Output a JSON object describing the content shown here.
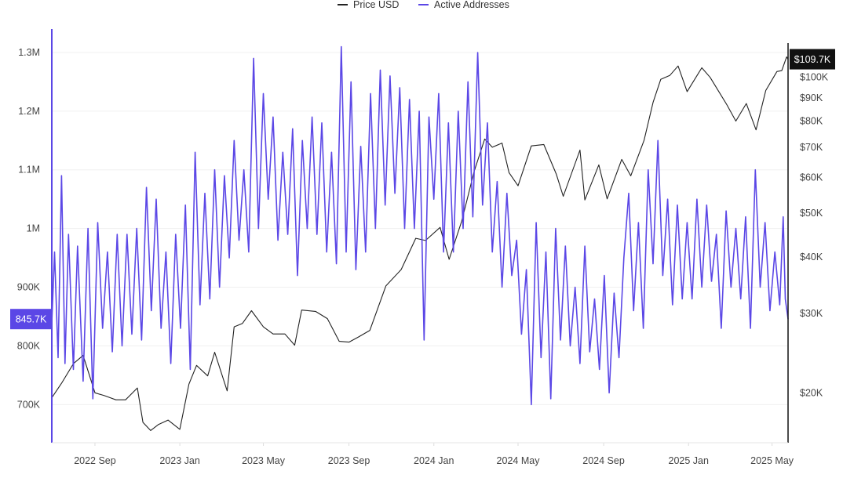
{
  "chart_data": {
    "type": "line",
    "title": "",
    "xlabel": "",
    "ylabel": "",
    "legend": {
      "placement": "top-center",
      "entries": [
        {
          "label": "Price USD",
          "color": "#222222"
        },
        {
          "label": "Active Addresses",
          "color": "#5b47e6"
        }
      ]
    },
    "x_ticks": [
      "2022 Sep",
      "2023 Jan",
      "2023 May",
      "2023 Sep",
      "2024 Jan",
      "2024 May",
      "2024 Sep",
      "2025 Jan",
      "2025 May"
    ],
    "x_range": [
      "2022-07-01",
      "2025-05-24"
    ],
    "left_axis": {
      "series": "Active Addresses",
      "ticks": [
        "700K",
        "800K",
        "900K",
        "1M",
        "1.1M",
        "1.2M",
        "1.3M"
      ],
      "tick_values": [
        700000,
        800000,
        900000,
        1000000,
        1100000,
        1200000,
        1300000
      ],
      "range": [
        635000,
        1340000
      ],
      "current_label": "845.7K",
      "current_value": 845700
    },
    "right_axis": {
      "series": "Price USD",
      "scale": "log",
      "ticks": [
        "$20K",
        "$30K",
        "$40K",
        "$50K",
        "$60K",
        "$70K",
        "$80K",
        "$90K",
        "$100K"
      ],
      "tick_values": [
        20000,
        30000,
        40000,
        50000,
        60000,
        70000,
        80000,
        90000,
        100000
      ],
      "range": [
        15500,
        128000
      ],
      "current_label": "$109.7K",
      "current_value": 109700
    },
    "grid": true,
    "series": [
      {
        "name": "Price USD",
        "color": "#222222",
        "points": [
          [
            "2022-07-01",
            19500
          ],
          [
            "2022-07-15",
            21000
          ],
          [
            "2022-08-01",
            23200
          ],
          [
            "2022-08-15",
            24200
          ],
          [
            "2022-09-01",
            20000
          ],
          [
            "2022-09-15",
            19700
          ],
          [
            "2022-10-01",
            19300
          ],
          [
            "2022-10-15",
            19300
          ],
          [
            "2022-11-01",
            20500
          ],
          [
            "2022-11-09",
            17200
          ],
          [
            "2022-11-20",
            16500
          ],
          [
            "2022-12-01",
            17000
          ],
          [
            "2022-12-15",
            17400
          ],
          [
            "2023-01-01",
            16600
          ],
          [
            "2023-01-14",
            20900
          ],
          [
            "2023-01-25",
            23000
          ],
          [
            "2023-02-10",
            21800
          ],
          [
            "2023-02-20",
            24600
          ],
          [
            "2023-03-10",
            20200
          ],
          [
            "2023-03-20",
            28000
          ],
          [
            "2023-04-01",
            28500
          ],
          [
            "2023-04-14",
            30400
          ],
          [
            "2023-05-01",
            28000
          ],
          [
            "2023-05-15",
            27000
          ],
          [
            "2023-06-01",
            27000
          ],
          [
            "2023-06-15",
            25500
          ],
          [
            "2023-06-25",
            30500
          ],
          [
            "2023-07-15",
            30300
          ],
          [
            "2023-08-01",
            29200
          ],
          [
            "2023-08-18",
            26000
          ],
          [
            "2023-09-01",
            25900
          ],
          [
            "2023-09-15",
            26600
          ],
          [
            "2023-10-01",
            27500
          ],
          [
            "2023-10-24",
            34500
          ],
          [
            "2023-11-15",
            37500
          ],
          [
            "2023-12-06",
            44000
          ],
          [
            "2023-12-20",
            43500
          ],
          [
            "2024-01-10",
            46500
          ],
          [
            "2024-01-23",
            39500
          ],
          [
            "2024-02-10",
            48000
          ],
          [
            "2024-02-28",
            62000
          ],
          [
            "2024-03-14",
            73000
          ],
          [
            "2024-03-25",
            70000
          ],
          [
            "2024-04-08",
            71500
          ],
          [
            "2024-04-18",
            61500
          ],
          [
            "2024-05-01",
            57500
          ],
          [
            "2024-05-20",
            70500
          ],
          [
            "2024-06-07",
            71000
          ],
          [
            "2024-06-25",
            61000
          ],
          [
            "2024-07-05",
            54500
          ],
          [
            "2024-07-29",
            69000
          ],
          [
            "2024-08-05",
            53500
          ],
          [
            "2024-08-25",
            64000
          ],
          [
            "2024-09-06",
            53800
          ],
          [
            "2024-09-27",
            65800
          ],
          [
            "2024-10-10",
            60500
          ],
          [
            "2024-10-29",
            72500
          ],
          [
            "2024-11-11",
            88000
          ],
          [
            "2024-11-22",
            99000
          ],
          [
            "2024-12-05",
            101000
          ],
          [
            "2024-12-17",
            106000
          ],
          [
            "2024-12-30",
            93000
          ],
          [
            "2025-01-20",
            105000
          ],
          [
            "2025-02-01",
            100000
          ],
          [
            "2025-02-25",
            87000
          ],
          [
            "2025-03-10",
            80000
          ],
          [
            "2025-03-25",
            87500
          ],
          [
            "2025-04-08",
            76500
          ],
          [
            "2025-04-22",
            93500
          ],
          [
            "2025-05-08",
            103000
          ],
          [
            "2025-05-15",
            103500
          ],
          [
            "2025-05-22",
            111000
          ],
          [
            "2025-05-24",
            109700
          ]
        ]
      },
      {
        "name": "Active Addresses",
        "color": "#5b47e6",
        "points": [
          [
            "2022-07-01",
            840000
          ],
          [
            "2022-07-05",
            960000
          ],
          [
            "2022-07-10",
            780000
          ],
          [
            "2022-07-15",
            1090000
          ],
          [
            "2022-07-20",
            770000
          ],
          [
            "2022-07-25",
            990000
          ],
          [
            "2022-08-01",
            760000
          ],
          [
            "2022-08-07",
            970000
          ],
          [
            "2022-08-15",
            740000
          ],
          [
            "2022-08-22",
            1000000
          ],
          [
            "2022-08-29",
            710000
          ],
          [
            "2022-09-05",
            1010000
          ],
          [
            "2022-09-12",
            830000
          ],
          [
            "2022-09-19",
            960000
          ],
          [
            "2022-09-26",
            790000
          ],
          [
            "2022-10-03",
            990000
          ],
          [
            "2022-10-10",
            800000
          ],
          [
            "2022-10-17",
            990000
          ],
          [
            "2022-10-24",
            820000
          ],
          [
            "2022-10-31",
            1000000
          ],
          [
            "2022-11-07",
            810000
          ],
          [
            "2022-11-14",
            1070000
          ],
          [
            "2022-11-21",
            860000
          ],
          [
            "2022-11-28",
            1050000
          ],
          [
            "2022-12-05",
            830000
          ],
          [
            "2022-12-12",
            960000
          ],
          [
            "2022-12-19",
            770000
          ],
          [
            "2022-12-26",
            990000
          ],
          [
            "2023-01-02",
            830000
          ],
          [
            "2023-01-09",
            1040000
          ],
          [
            "2023-01-16",
            760000
          ],
          [
            "2023-01-23",
            1130000
          ],
          [
            "2023-01-30",
            870000
          ],
          [
            "2023-02-06",
            1060000
          ],
          [
            "2023-02-13",
            880000
          ],
          [
            "2023-02-20",
            1100000
          ],
          [
            "2023-02-27",
            900000
          ],
          [
            "2023-03-06",
            1090000
          ],
          [
            "2023-03-13",
            950000
          ],
          [
            "2023-03-20",
            1150000
          ],
          [
            "2023-03-27",
            980000
          ],
          [
            "2023-04-03",
            1100000
          ],
          [
            "2023-04-10",
            960000
          ],
          [
            "2023-04-17",
            1290000
          ],
          [
            "2023-04-24",
            1000000
          ],
          [
            "2023-05-01",
            1230000
          ],
          [
            "2023-05-08",
            1050000
          ],
          [
            "2023-05-15",
            1190000
          ],
          [
            "2023-05-22",
            980000
          ],
          [
            "2023-05-29",
            1130000
          ],
          [
            "2023-06-05",
            990000
          ],
          [
            "2023-06-12",
            1170000
          ],
          [
            "2023-06-19",
            920000
          ],
          [
            "2023-06-26",
            1150000
          ],
          [
            "2023-07-03",
            1000000
          ],
          [
            "2023-07-10",
            1190000
          ],
          [
            "2023-07-17",
            990000
          ],
          [
            "2023-07-24",
            1180000
          ],
          [
            "2023-07-31",
            960000
          ],
          [
            "2023-08-07",
            1130000
          ],
          [
            "2023-08-14",
            940000
          ],
          [
            "2023-08-21",
            1310000
          ],
          [
            "2023-08-28",
            960000
          ],
          [
            "2023-09-04",
            1250000
          ],
          [
            "2023-09-11",
            930000
          ],
          [
            "2023-09-18",
            1140000
          ],
          [
            "2023-09-25",
            960000
          ],
          [
            "2023-10-02",
            1230000
          ],
          [
            "2023-10-09",
            1000000
          ],
          [
            "2023-10-16",
            1270000
          ],
          [
            "2023-10-23",
            1040000
          ],
          [
            "2023-10-30",
            1260000
          ],
          [
            "2023-11-06",
            1060000
          ],
          [
            "2023-11-13",
            1240000
          ],
          [
            "2023-11-20",
            1000000
          ],
          [
            "2023-11-27",
            1220000
          ],
          [
            "2023-12-04",
            1000000
          ],
          [
            "2023-12-11",
            1200000
          ],
          [
            "2023-12-18",
            810000
          ],
          [
            "2023-12-25",
            1190000
          ],
          [
            "2024-01-01",
            1050000
          ],
          [
            "2024-01-08",
            1230000
          ],
          [
            "2024-01-15",
            960000
          ],
          [
            "2024-01-22",
            1180000
          ],
          [
            "2024-01-29",
            960000
          ],
          [
            "2024-02-05",
            1200000
          ],
          [
            "2024-02-12",
            1000000
          ],
          [
            "2024-02-19",
            1250000
          ],
          [
            "2024-02-26",
            1020000
          ],
          [
            "2024-03-04",
            1300000
          ],
          [
            "2024-03-11",
            1040000
          ],
          [
            "2024-03-18",
            1180000
          ],
          [
            "2024-03-25",
            960000
          ],
          [
            "2024-04-01",
            1080000
          ],
          [
            "2024-04-08",
            900000
          ],
          [
            "2024-04-15",
            1060000
          ],
          [
            "2024-04-22",
            920000
          ],
          [
            "2024-04-29",
            980000
          ],
          [
            "2024-05-06",
            820000
          ],
          [
            "2024-05-13",
            930000
          ],
          [
            "2024-05-20",
            700000
          ],
          [
            "2024-05-27",
            1010000
          ],
          [
            "2024-06-03",
            780000
          ],
          [
            "2024-06-10",
            960000
          ],
          [
            "2024-06-17",
            710000
          ],
          [
            "2024-06-24",
            1000000
          ],
          [
            "2024-07-01",
            810000
          ],
          [
            "2024-07-08",
            970000
          ],
          [
            "2024-07-15",
            800000
          ],
          [
            "2024-07-22",
            900000
          ],
          [
            "2024-07-29",
            770000
          ],
          [
            "2024-08-05",
            970000
          ],
          [
            "2024-08-12",
            790000
          ],
          [
            "2024-08-19",
            880000
          ],
          [
            "2024-08-26",
            760000
          ],
          [
            "2024-09-02",
            920000
          ],
          [
            "2024-09-09",
            720000
          ],
          [
            "2024-09-16",
            890000
          ],
          [
            "2024-09-23",
            780000
          ],
          [
            "2024-09-30",
            950000
          ],
          [
            "2024-10-07",
            1060000
          ],
          [
            "2024-10-14",
            860000
          ],
          [
            "2024-10-21",
            1010000
          ],
          [
            "2024-10-28",
            830000
          ],
          [
            "2024-11-04",
            1100000
          ],
          [
            "2024-11-11",
            940000
          ],
          [
            "2024-11-18",
            1150000
          ],
          [
            "2024-11-25",
            920000
          ],
          [
            "2024-12-02",
            1050000
          ],
          [
            "2024-12-09",
            870000
          ],
          [
            "2024-12-16",
            1040000
          ],
          [
            "2024-12-23",
            880000
          ],
          [
            "2024-12-30",
            1010000
          ],
          [
            "2025-01-06",
            880000
          ],
          [
            "2025-01-13",
            1050000
          ],
          [
            "2025-01-20",
            900000
          ],
          [
            "2025-01-27",
            1040000
          ],
          [
            "2025-02-03",
            910000
          ],
          [
            "2025-02-10",
            990000
          ],
          [
            "2025-02-17",
            830000
          ],
          [
            "2025-02-24",
            1030000
          ],
          [
            "2025-03-03",
            900000
          ],
          [
            "2025-03-10",
            1000000
          ],
          [
            "2025-03-17",
            880000
          ],
          [
            "2025-03-24",
            1020000
          ],
          [
            "2025-03-31",
            830000
          ],
          [
            "2025-04-07",
            1100000
          ],
          [
            "2025-04-14",
            900000
          ],
          [
            "2025-04-21",
            1010000
          ],
          [
            "2025-04-28",
            860000
          ],
          [
            "2025-05-05",
            960000
          ],
          [
            "2025-05-12",
            870000
          ],
          [
            "2025-05-17",
            1020000
          ],
          [
            "2025-05-20",
            880000
          ],
          [
            "2025-05-24",
            845700
          ]
        ]
      }
    ]
  }
}
